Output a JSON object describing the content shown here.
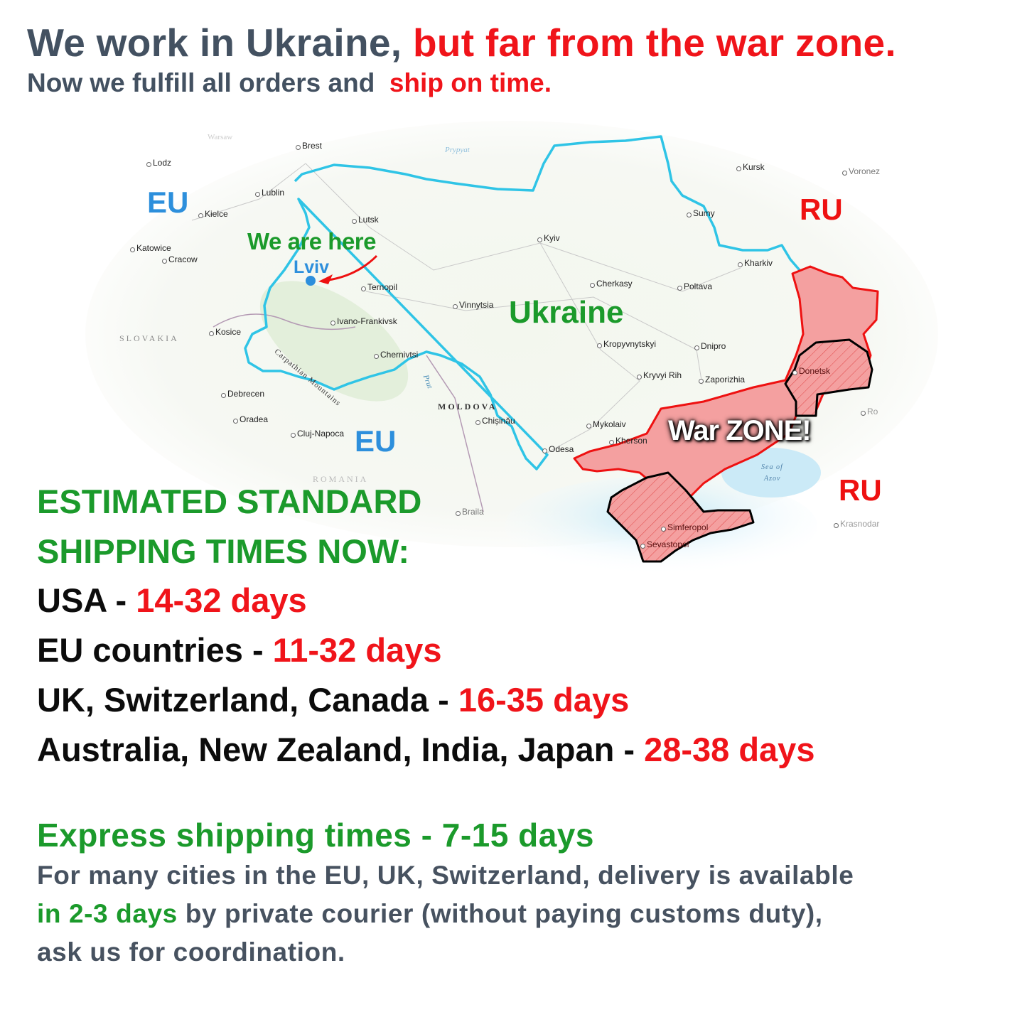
{
  "header": {
    "line1_a": "We work in Ukraine,",
    "line1_b": "but far from the war zone.",
    "line2_a": "Now we fulfill all orders and",
    "line2_b": "ship on time."
  },
  "map": {
    "regions": {
      "eu_1": "EU",
      "eu_2": "EU",
      "ru_1": "RU",
      "ru_2": "RU",
      "ukraine": "Ukraine",
      "we_are_here": "We are here",
      "lviv": "Lviv",
      "war_zone": "War ZONE!"
    },
    "countries": {
      "slovakia": "SLOVAKIA",
      "moldova": "MOLDOVA",
      "romania": "ROMANIA"
    },
    "features": {
      "carpathians": "Carpathian Mountains",
      "prut": "Prut",
      "prypyat": "Prypyat",
      "sea_of_azov_1": "Sea of",
      "sea_of_azov_2": "Azov",
      "warsaw": "Warsaw"
    },
    "cities": [
      "Brest",
      "Lodz",
      "Lublin",
      "Kielce",
      "Katowice",
      "Cracow",
      "Lutsk",
      "Ternopil",
      "Vinnytsia",
      "Ivano-Frankivsk",
      "Kosice",
      "Chernivtsi",
      "Debrecen",
      "Oradea",
      "Cluj-Napoca",
      "Chișinău",
      "Kyiv",
      "Kursk",
      "Voronez",
      "Sumy",
      "Kharkiv",
      "Poltava",
      "Cherkasy",
      "Kropyvnytskyi",
      "Dnipro",
      "Kryvyi Rih",
      "Zaporizhia",
      "Mykolaiv",
      "Kherson",
      "Odesa",
      "Donetsk",
      "Simferopol",
      "Sevastopol",
      "Braila",
      "Krasnodar",
      "Ro"
    ],
    "colors": {
      "border": "#2fc4e6",
      "occupied_fill": "#f4a0a0",
      "occupied_outline": "#ee1111",
      "annexed_outline": "#000000",
      "eu": "#2d8fdc",
      "ru": "#ee1111",
      "ukraine": "#1b9a2b"
    }
  },
  "shipping": {
    "title_1": "ESTIMATED STANDARD",
    "title_2": "SHIPPING TIMES NOW:",
    "rows": [
      {
        "region": "USA - ",
        "time": "14-32 days"
      },
      {
        "region": "EU countries - ",
        "time": "11-32 days"
      },
      {
        "region": "UK, Switzerland, Canada - ",
        "time": "16-35 days"
      },
      {
        "region": "Australia, New Zealand, India, Japan - ",
        "time": "28-38 days"
      }
    ],
    "express": "Express shipping times - 7-15 days",
    "note_1": "For many cities in the EU, UK, Switzerland, delivery is available",
    "note_2_green": "in 2-3 days",
    "note_2_rest": " by private courier (without paying customs duty),",
    "note_3": "ask us for coordination."
  }
}
